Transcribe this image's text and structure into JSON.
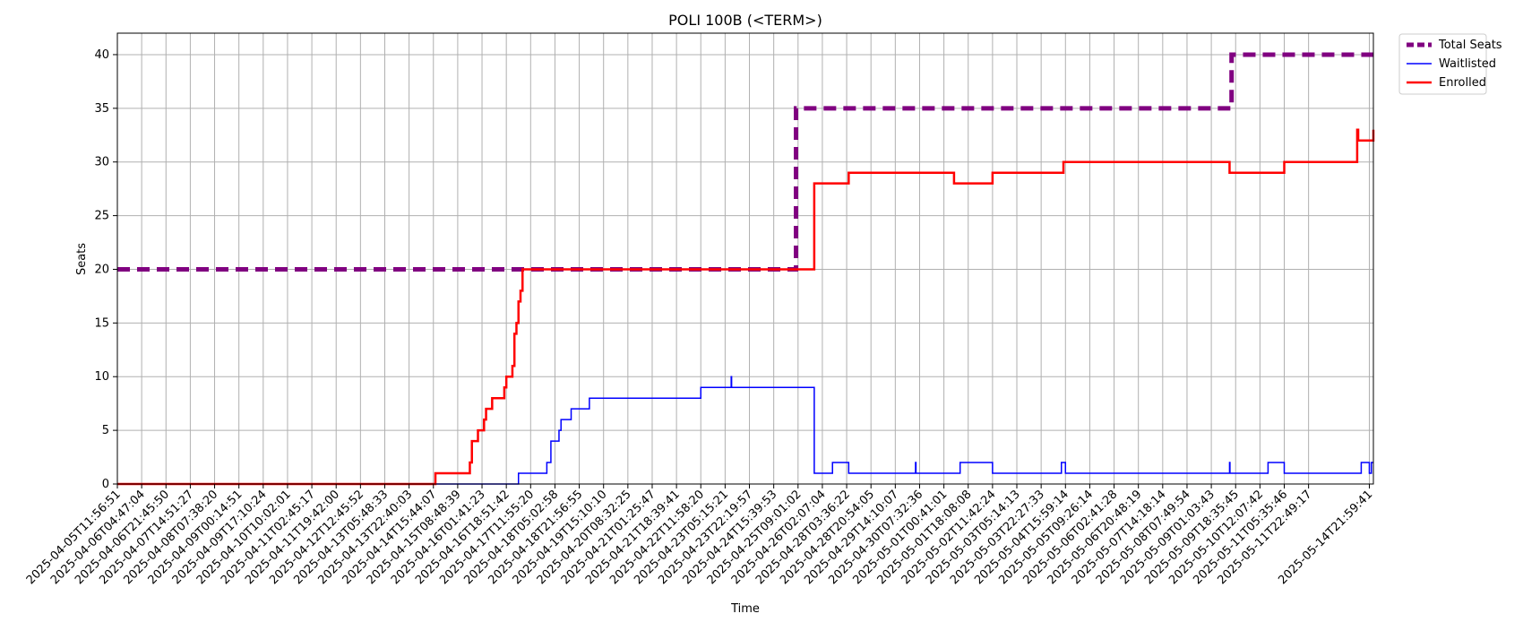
{
  "chart_data": {
    "type": "line",
    "title": "POLI 100B (<TERM>)",
    "xlabel": "Time",
    "ylabel": "Seats",
    "ylim": [
      0,
      42
    ],
    "yticks": [
      0,
      5,
      10,
      15,
      20,
      25,
      30,
      35,
      40
    ],
    "grid": true,
    "legend_position": "outside-top-right",
    "x_tick_labels": [
      "2025-04-05T11:56:51",
      "2025-04-06T04:47:04",
      "2025-04-06T21:45:50",
      "2025-04-07T14:51:27",
      "2025-04-08T07:38:20",
      "2025-04-09T00:14:51",
      "2025-04-09T17:10:24",
      "2025-04-10T10:02:01",
      "2025-04-11T02:45:17",
      "2025-04-11T19:42:00",
      "2025-04-12T12:45:52",
      "2025-04-13T05:48:33",
      "2025-04-13T22:40:03",
      "2025-04-14T15:44:07",
      "2025-04-15T08:48:39",
      "2025-04-16T01:41:23",
      "2025-04-16T18:51:42",
      "2025-04-17T11:55:20",
      "2025-04-18T05:02:58",
      "2025-04-18T21:56:55",
      "2025-04-19T15:10:10",
      "2025-04-20T08:32:25",
      "2025-04-21T01:25:47",
      "2025-04-21T18:39:41",
      "2025-04-22T11:58:20",
      "2025-04-23T05:15:21",
      "2025-04-23T22:19:57",
      "2025-04-24T15:39:53",
      "2025-04-25T09:01:02",
      "2025-04-26T02:07:04",
      "2025-04-28T03:36:22",
      "2025-04-28T20:54:05",
      "2025-04-29T14:10:07",
      "2025-04-30T07:32:36",
      "2025-05-01T00:41:01",
      "2025-05-01T18:08:08",
      "2025-05-02T11:42:24",
      "2025-05-03T05:14:13",
      "2025-05-03T22:27:33",
      "2025-05-04T15:59:14",
      "2025-05-05T09:26:14",
      "2025-05-06T02:41:28",
      "2025-05-06T20:48:19",
      "2025-05-07T14:18:14",
      "2025-05-08T07:49:54",
      "2025-05-09T01:03:43",
      "2025-05-09T18:35:45",
      "2025-05-10T12:07:42",
      "2025-05-11T05:35:46",
      "2025-05-11T22:49:17",
      "2025-05-14T21:59:41"
    ],
    "series": [
      {
        "name": "Total Seats",
        "color": "#800080",
        "style": "dashed",
        "points": [
          [
            0,
            20
          ],
          [
            33.5,
            20
          ],
          [
            33.5,
            35
          ],
          [
            55,
            35
          ],
          [
            55,
            40
          ],
          [
            62,
            40
          ]
        ]
      },
      {
        "name": "Waitlisted",
        "color": "#0000ff",
        "style": "solid",
        "points": [
          [
            0,
            0
          ],
          [
            19.8,
            0
          ],
          [
            19.8,
            1
          ],
          [
            21.2,
            1
          ],
          [
            21.2,
            2
          ],
          [
            21.4,
            2
          ],
          [
            21.4,
            4
          ],
          [
            21.8,
            4
          ],
          [
            21.8,
            5
          ],
          [
            21.9,
            5
          ],
          [
            21.9,
            6
          ],
          [
            22.4,
            6
          ],
          [
            22.4,
            7
          ],
          [
            23.3,
            7
          ],
          [
            23.3,
            8
          ],
          [
            28.8,
            8
          ],
          [
            28.8,
            9
          ],
          [
            30.3,
            9
          ],
          [
            30.3,
            10
          ],
          [
            30.32,
            10
          ],
          [
            30.32,
            9
          ],
          [
            34.4,
            9
          ],
          [
            34.4,
            1
          ],
          [
            35.3,
            1
          ],
          [
            35.3,
            2
          ],
          [
            36.1,
            2
          ],
          [
            36.1,
            1
          ],
          [
            39.4,
            1
          ],
          [
            39.4,
            2
          ],
          [
            39.42,
            2
          ],
          [
            39.42,
            1
          ],
          [
            41.6,
            1
          ],
          [
            41.6,
            2
          ],
          [
            43.2,
            2
          ],
          [
            43.2,
            1
          ],
          [
            46.6,
            1
          ],
          [
            46.6,
            2
          ],
          [
            46.8,
            2
          ],
          [
            46.8,
            1
          ],
          [
            54.9,
            1
          ],
          [
            54.9,
            2
          ],
          [
            54.92,
            2
          ],
          [
            54.92,
            1
          ],
          [
            56.8,
            1
          ],
          [
            56.8,
            2
          ],
          [
            57.6,
            2
          ],
          [
            57.6,
            1
          ],
          [
            61.4,
            1
          ],
          [
            61.4,
            2
          ],
          [
            61.8,
            2
          ],
          [
            61.8,
            1
          ],
          [
            61.9,
            1
          ],
          [
            61.9,
            2
          ],
          [
            62,
            2
          ]
        ]
      },
      {
        "name": "Enrolled",
        "color": "#ff0000",
        "style": "solid",
        "points": [
          [
            0,
            0
          ],
          [
            15.7,
            0
          ],
          [
            15.7,
            1
          ],
          [
            17.4,
            1
          ],
          [
            17.4,
            2
          ],
          [
            17.5,
            2
          ],
          [
            17.5,
            4
          ],
          [
            17.8,
            4
          ],
          [
            17.8,
            5
          ],
          [
            18.1,
            5
          ],
          [
            18.1,
            6
          ],
          [
            18.2,
            6
          ],
          [
            18.2,
            7
          ],
          [
            18.5,
            7
          ],
          [
            18.5,
            8
          ],
          [
            19.1,
            8
          ],
          [
            19.1,
            9
          ],
          [
            19.2,
            9
          ],
          [
            19.2,
            10
          ],
          [
            19.5,
            10
          ],
          [
            19.5,
            11
          ],
          [
            19.6,
            11
          ],
          [
            19.6,
            14
          ],
          [
            19.7,
            14
          ],
          [
            19.7,
            15
          ],
          [
            19.8,
            15
          ],
          [
            19.8,
            17
          ],
          [
            19.9,
            17
          ],
          [
            19.9,
            18
          ],
          [
            20.0,
            18
          ],
          [
            20.0,
            20
          ],
          [
            34.4,
            20
          ],
          [
            34.4,
            28
          ],
          [
            36.1,
            28
          ],
          [
            36.1,
            29
          ],
          [
            41.3,
            29
          ],
          [
            41.3,
            28
          ],
          [
            43.2,
            28
          ],
          [
            43.2,
            29
          ],
          [
            46.7,
            29
          ],
          [
            46.7,
            30
          ],
          [
            54.9,
            30
          ],
          [
            54.9,
            29
          ],
          [
            57.6,
            29
          ],
          [
            57.6,
            30
          ],
          [
            61.2,
            30
          ],
          [
            61.2,
            33
          ],
          [
            61.25,
            33
          ],
          [
            61.25,
            32
          ],
          [
            62.0,
            32
          ],
          [
            62.0,
            33
          ],
          [
            62,
            33
          ]
        ]
      }
    ]
  }
}
